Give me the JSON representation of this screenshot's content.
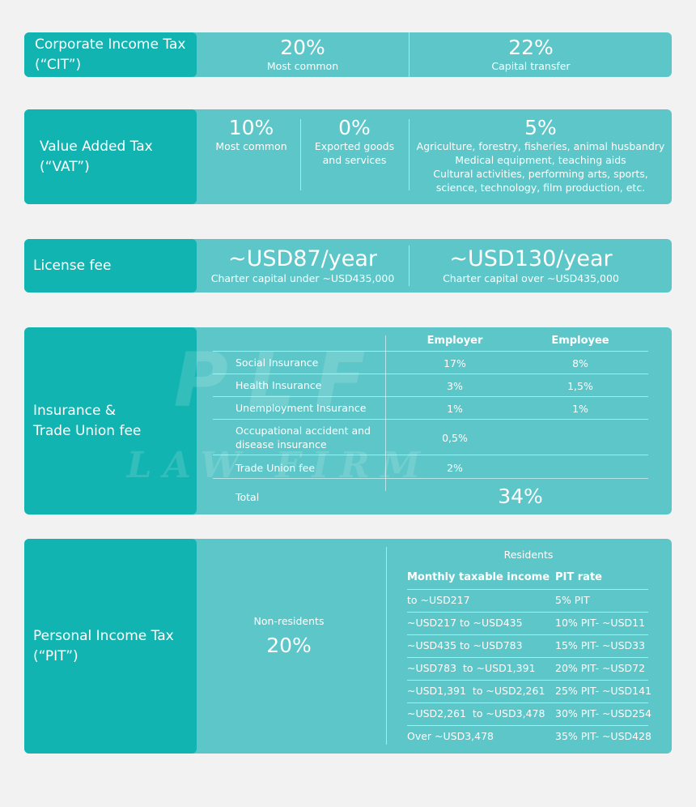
{
  "cit": {
    "label": "Corporate Income Tax\n(“CIT”)",
    "rates": [
      {
        "value": "20%",
        "desc": "Most common"
      },
      {
        "value": "22%",
        "desc": "Capital transfer"
      }
    ]
  },
  "vat": {
    "label": "Value Added Tax\n(“VAT”)",
    "rates": [
      {
        "value": "10%",
        "desc": "Most common"
      },
      {
        "value": "0%",
        "desc": "Exported goods\nand services"
      },
      {
        "value": "5%",
        "desc": "Agriculture, forestry, fisheries, animal husbandry\nMedical equipment, teaching aids\nCultural activities, performing arts, sports,\nscience, technology, film production, etc."
      }
    ]
  },
  "license": {
    "label": "License fee",
    "rates": [
      {
        "value": "~USD87/year",
        "desc": "Charter capital under ~USD435,000"
      },
      {
        "value": "~USD130/year",
        "desc": "Charter capital over ~USD435,000"
      }
    ]
  },
  "insurance": {
    "label": "Insurance &\nTrade Union fee",
    "headers": {
      "employer": "Employer",
      "employee": "Employee"
    },
    "rows": [
      {
        "name": "Social Insurance",
        "employer": "17%",
        "employee": "8%"
      },
      {
        "name": "Health Insurance",
        "employer": "3%",
        "employee": "1,5%"
      },
      {
        "name": "Unemployment Insurance",
        "employer": "1%",
        "employee": "1%"
      },
      {
        "name": "Occupational accident and\ndisease insurance",
        "employer": "0,5%",
        "employee": ""
      },
      {
        "name": "Trade Union fee",
        "employer": "2%",
        "employee": ""
      }
    ],
    "total_label": "Total",
    "total_value": "34%",
    "watermark_line1": "PLF",
    "watermark_line2": "LAW FIRM"
  },
  "pit": {
    "label": "Personal Income Tax\n(“PIT”)",
    "nonresident_label": "Non-residents",
    "nonresident_rate": "20%",
    "resident_label": "Residents",
    "headers": {
      "income": "Monthly taxable income",
      "rate": "PIT rate"
    },
    "rows": [
      {
        "income": "to ~USD217",
        "rate": "5% PIT"
      },
      {
        "income": "~USD217 to ~USD435",
        "rate": "10% PIT- ~USD11"
      },
      {
        "income": "~USD435 to ~USD783",
        "rate": "15% PIT- ~USD33"
      },
      {
        "income": "~USD783  to ~USD1,391",
        "rate": "20% PIT- ~USD72"
      },
      {
        "income": "~USD1,391  to ~USD2,261",
        "rate": "25% PIT- ~USD141"
      },
      {
        "income": "~USD2,261  to ~USD3,478",
        "rate": "30% PIT- ~USD254"
      },
      {
        "income": "Over ~USD3,478",
        "rate": "35% PIT- ~USD428"
      }
    ]
  }
}
